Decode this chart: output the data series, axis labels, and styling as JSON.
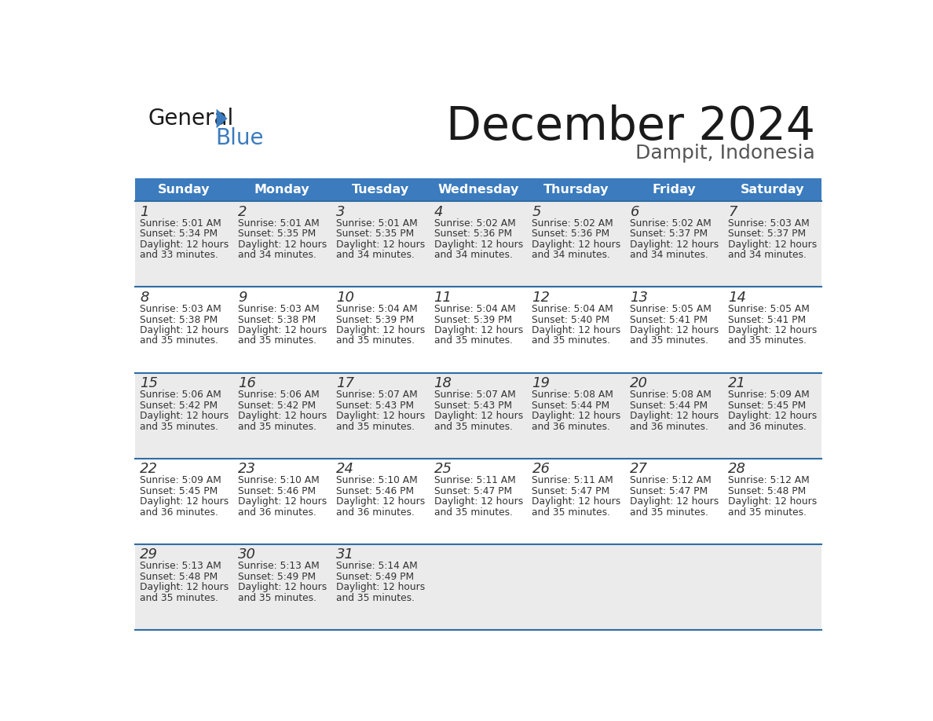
{
  "title": "December 2024",
  "subtitle": "Dampit, Indonesia",
  "header_bg_color": "#3B7BBE",
  "header_text_color": "#FFFFFF",
  "cell_bg_even": "#EBEBEB",
  "cell_bg_odd": "#FFFFFF",
  "border_color": "#2E6DA4",
  "text_color": "#333333",
  "days_of_week": [
    "Sunday",
    "Monday",
    "Tuesday",
    "Wednesday",
    "Thursday",
    "Friday",
    "Saturday"
  ],
  "calendar": [
    [
      {
        "day": 1,
        "sunrise": "5:01 AM",
        "sunset": "5:34 PM",
        "daylight": "12 hours and 33 minutes."
      },
      {
        "day": 2,
        "sunrise": "5:01 AM",
        "sunset": "5:35 PM",
        "daylight": "12 hours and 34 minutes."
      },
      {
        "day": 3,
        "sunrise": "5:01 AM",
        "sunset": "5:35 PM",
        "daylight": "12 hours and 34 minutes."
      },
      {
        "day": 4,
        "sunrise": "5:02 AM",
        "sunset": "5:36 PM",
        "daylight": "12 hours and 34 minutes."
      },
      {
        "day": 5,
        "sunrise": "5:02 AM",
        "sunset": "5:36 PM",
        "daylight": "12 hours and 34 minutes."
      },
      {
        "day": 6,
        "sunrise": "5:02 AM",
        "sunset": "5:37 PM",
        "daylight": "12 hours and 34 minutes."
      },
      {
        "day": 7,
        "sunrise": "5:03 AM",
        "sunset": "5:37 PM",
        "daylight": "12 hours and 34 minutes."
      }
    ],
    [
      {
        "day": 8,
        "sunrise": "5:03 AM",
        "sunset": "5:38 PM",
        "daylight": "12 hours and 35 minutes."
      },
      {
        "day": 9,
        "sunrise": "5:03 AM",
        "sunset": "5:38 PM",
        "daylight": "12 hours and 35 minutes."
      },
      {
        "day": 10,
        "sunrise": "5:04 AM",
        "sunset": "5:39 PM",
        "daylight": "12 hours and 35 minutes."
      },
      {
        "day": 11,
        "sunrise": "5:04 AM",
        "sunset": "5:39 PM",
        "daylight": "12 hours and 35 minutes."
      },
      {
        "day": 12,
        "sunrise": "5:04 AM",
        "sunset": "5:40 PM",
        "daylight": "12 hours and 35 minutes."
      },
      {
        "day": 13,
        "sunrise": "5:05 AM",
        "sunset": "5:41 PM",
        "daylight": "12 hours and 35 minutes."
      },
      {
        "day": 14,
        "sunrise": "5:05 AM",
        "sunset": "5:41 PM",
        "daylight": "12 hours and 35 minutes."
      }
    ],
    [
      {
        "day": 15,
        "sunrise": "5:06 AM",
        "sunset": "5:42 PM",
        "daylight": "12 hours and 35 minutes."
      },
      {
        "day": 16,
        "sunrise": "5:06 AM",
        "sunset": "5:42 PM",
        "daylight": "12 hours and 35 minutes."
      },
      {
        "day": 17,
        "sunrise": "5:07 AM",
        "sunset": "5:43 PM",
        "daylight": "12 hours and 35 minutes."
      },
      {
        "day": 18,
        "sunrise": "5:07 AM",
        "sunset": "5:43 PM",
        "daylight": "12 hours and 35 minutes."
      },
      {
        "day": 19,
        "sunrise": "5:08 AM",
        "sunset": "5:44 PM",
        "daylight": "12 hours and 36 minutes."
      },
      {
        "day": 20,
        "sunrise": "5:08 AM",
        "sunset": "5:44 PM",
        "daylight": "12 hours and 36 minutes."
      },
      {
        "day": 21,
        "sunrise": "5:09 AM",
        "sunset": "5:45 PM",
        "daylight": "12 hours and 36 minutes."
      }
    ],
    [
      {
        "day": 22,
        "sunrise": "5:09 AM",
        "sunset": "5:45 PM",
        "daylight": "12 hours and 36 minutes."
      },
      {
        "day": 23,
        "sunrise": "5:10 AM",
        "sunset": "5:46 PM",
        "daylight": "12 hours and 36 minutes."
      },
      {
        "day": 24,
        "sunrise": "5:10 AM",
        "sunset": "5:46 PM",
        "daylight": "12 hours and 36 minutes."
      },
      {
        "day": 25,
        "sunrise": "5:11 AM",
        "sunset": "5:47 PM",
        "daylight": "12 hours and 35 minutes."
      },
      {
        "day": 26,
        "sunrise": "5:11 AM",
        "sunset": "5:47 PM",
        "daylight": "12 hours and 35 minutes."
      },
      {
        "day": 27,
        "sunrise": "5:12 AM",
        "sunset": "5:47 PM",
        "daylight": "12 hours and 35 minutes."
      },
      {
        "day": 28,
        "sunrise": "5:12 AM",
        "sunset": "5:48 PM",
        "daylight": "12 hours and 35 minutes."
      }
    ],
    [
      {
        "day": 29,
        "sunrise": "5:13 AM",
        "sunset": "5:48 PM",
        "daylight": "12 hours and 35 minutes."
      },
      {
        "day": 30,
        "sunrise": "5:13 AM",
        "sunset": "5:49 PM",
        "daylight": "12 hours and 35 minutes."
      },
      {
        "day": 31,
        "sunrise": "5:14 AM",
        "sunset": "5:49 PM",
        "daylight": "12 hours and 35 minutes."
      },
      null,
      null,
      null,
      null
    ]
  ]
}
